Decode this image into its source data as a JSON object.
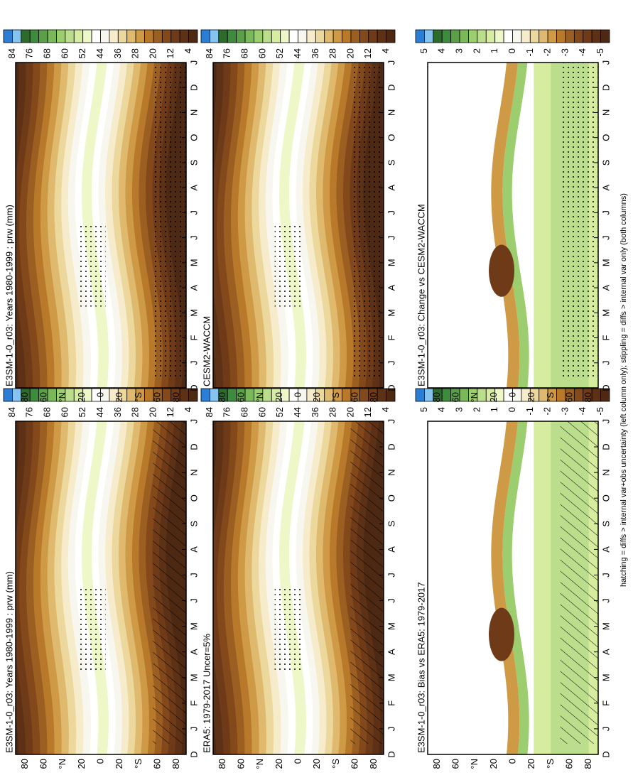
{
  "colors": [
    "#2a7fd4",
    "#86c3ef",
    "#2d6b2d",
    "#3d8b3d",
    "#5aa046",
    "#7bb85a",
    "#9ccd6f",
    "#bbde8c",
    "#d6ec9f",
    "#eef7c8",
    "#ffffff",
    "#f7f7ef",
    "#f6eccb",
    "#ecd79c",
    "#dfba6e",
    "#cf9a45",
    "#b8792a",
    "#9c5f22",
    "#84491b",
    "#6e3a17",
    "#5d3116",
    "#4d2813"
  ],
  "months": [
    "D",
    "J",
    "F",
    "M",
    "A",
    "M",
    "J",
    "J",
    "A",
    "S",
    "O",
    "N",
    "D",
    "J"
  ],
  "lat_labels": [
    "80",
    "60",
    "°N",
    "20",
    "0",
    "20",
    "°S",
    "60",
    "80"
  ],
  "panels": [
    {
      "title": "E3SM-1-0_r03: Years 1980-1999 : prw (mm)",
      "kind": "field",
      "colorbar_labels": [
        84,
        76,
        68,
        60,
        52,
        44,
        36,
        28,
        20,
        12,
        4
      ]
    },
    {
      "title": "E3SM-1-0_r03: Years 1980-1999 : prw (mm)",
      "kind": "field",
      "colorbar_labels": [
        84,
        76,
        68,
        60,
        52,
        44,
        36,
        28,
        20,
        12,
        4
      ]
    },
    {
      "title": "ERA5: 1979-2017 Uncer=5%",
      "kind": "field",
      "colorbar_labels": [
        84,
        76,
        68,
        60,
        52,
        44,
        36,
        28,
        20,
        12,
        4
      ]
    },
    {
      "title": "CESM2-WACCM",
      "kind": "field",
      "colorbar_labels": [
        84,
        76,
        68,
        60,
        52,
        44,
        36,
        28,
        20,
        12,
        4
      ]
    },
    {
      "title": "E3SM-1-0_r03: Bias vs ERA5: 1979-2017",
      "kind": "diff",
      "colorbar_labels": [
        5,
        4,
        3,
        2,
        1,
        0,
        -1,
        -2,
        -3,
        -4,
        -5
      ]
    },
    {
      "title": "E3SM-1-0_r03: Change vs CESM2-WACCM",
      "kind": "diff",
      "colorbar_labels": [
        5,
        4,
        3,
        2,
        1,
        0,
        -1,
        -2,
        -3,
        -4,
        -5
      ]
    }
  ],
  "footnote": "hatching = diffs > internal var+obs uncertainty (left column only); stippling = diffs > internal var only (both columns)"
}
